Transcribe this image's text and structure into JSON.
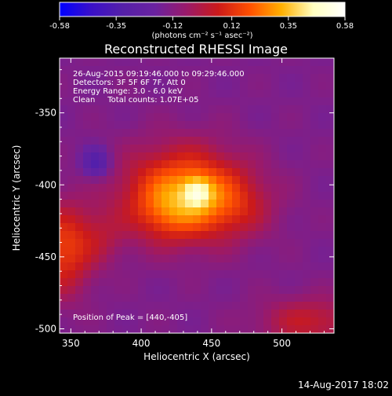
{
  "chart_data": {
    "type": "heatmap",
    "title": "Reconstructed RHESSI Image",
    "xlabel": "Heliocentric X (arcsec)",
    "ylabel": "Heliocentric Y (arcsec)",
    "xlim": [
      342,
      537
    ],
    "ylim": [
      -503,
      -312
    ],
    "x_ticks": [
      350,
      400,
      450,
      500
    ],
    "y_ticks": [
      -350,
      -400,
      -450,
      -500
    ],
    "colorbar": {
      "range": [
        -0.58,
        0.58
      ],
      "ticks": [
        "-0.58",
        "-0.35",
        "-0.12",
        "0.12",
        "0.35",
        "0.58"
      ],
      "unit": "(photons cm⁻² s⁻¹ asec⁻²)",
      "colors": [
        "#0000ff",
        "#3a10c8",
        "#5520a8",
        "#6a22a0",
        "#9a1a6a",
        "#cc1a1a",
        "#ff5000",
        "#ffb000",
        "#ffffc0",
        "#ffffff"
      ]
    },
    "info_lines": [
      "26-Aug-2015 09:19:46.000 to 09:29:46.000",
      "Detectors: 3F 5F 6F 7F, Att 0",
      "Energy Range: 3.0 - 6.0 keV",
      "Clean     Total counts: 1.07E+05"
    ],
    "peak_label": "Position of Peak = [440,-405]",
    "peak": {
      "x": 440,
      "y": -405,
      "value": 0.58
    },
    "sources": [
      {
        "x": 440,
        "y": -405,
        "sx": 7,
        "sy": 7,
        "amp": 0.23
      },
      {
        "x": 430,
        "y": -405,
        "sx": 30,
        "sy": 22,
        "amp": 0.38
      },
      {
        "x": 462,
        "y": -415,
        "sx": 22,
        "sy": 16,
        "amp": 0.14
      },
      {
        "x": 418,
        "y": -420,
        "sx": 16,
        "sy": 14,
        "amp": 0.12
      },
      {
        "x": 345,
        "y": -445,
        "sx": 14,
        "sy": 22,
        "amp": 0.28
      },
      {
        "x": 372,
        "y": -436,
        "sx": 12,
        "sy": 14,
        "amp": 0.1
      },
      {
        "x": 520,
        "y": -495,
        "sx": 26,
        "sy": 12,
        "amp": 0.18
      },
      {
        "x": 368,
        "y": -385,
        "sx": 7,
        "sy": 7,
        "amp": -0.22
      }
    ],
    "background": {
      "level": -0.14,
      "ripple": 0.02
    },
    "timestamp": "14-Aug-2017 18:02"
  }
}
